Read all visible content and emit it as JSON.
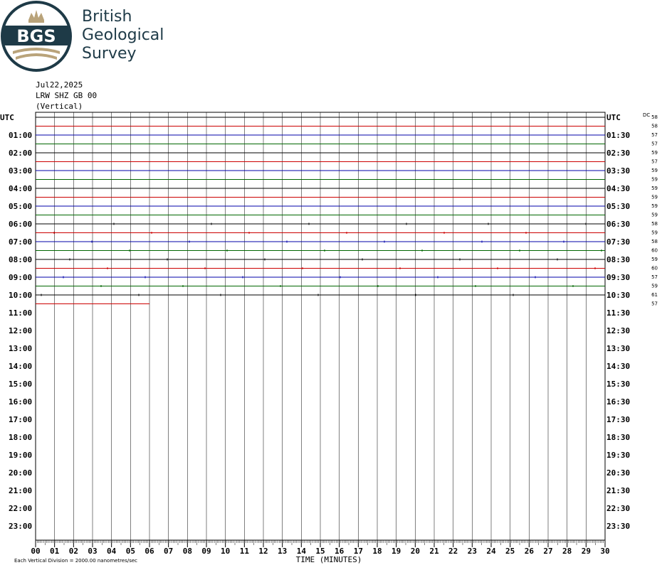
{
  "logo": {
    "badge_text": "BGS",
    "name_lines": [
      "British",
      "Geological",
      "Survey"
    ],
    "colors": {
      "navy": "#1e3a47",
      "gold": "#b9a37a"
    }
  },
  "header": {
    "date": "Jul22,2025",
    "station": "LRW SHZ GB 00",
    "component": "(Vertical)"
  },
  "labels": {
    "utc_left": "UTC",
    "utc_right": "UTC",
    "dc": "DC",
    "x_title": "TIME (MINUTES)",
    "footer": "Each Vertical Division = 2000.00 nanometres/sec"
  },
  "chart_data": {
    "type": "line",
    "title": "",
    "xlabel": "TIME (MINUTES)",
    "ylabel": "",
    "xlim": [
      0,
      30
    ],
    "x_ticks": [
      "00",
      "01",
      "02",
      "03",
      "04",
      "05",
      "06",
      "07",
      "08",
      "09",
      "10",
      "11",
      "12",
      "13",
      "14",
      "15",
      "16",
      "17",
      "18",
      "19",
      "20",
      "21",
      "22",
      "23",
      "24",
      "25",
      "26",
      "27",
      "28",
      "29",
      "30"
    ],
    "left_hour_labels": [
      "UTC",
      "01:00",
      "02:00",
      "03:00",
      "04:00",
      "05:00",
      "06:00",
      "07:00",
      "08:00",
      "09:00",
      "10:00",
      "11:00",
      "12:00",
      "13:00",
      "14:00",
      "15:00",
      "16:00",
      "17:00",
      "18:00",
      "19:00",
      "20:00",
      "21:00",
      "22:00",
      "23:00"
    ],
    "right_hour_labels": [
      "UTC",
      "01:30",
      "02:30",
      "03:30",
      "04:30",
      "05:30",
      "06:30",
      "07:30",
      "08:30",
      "09:30",
      "10:30",
      "11:30",
      "12:30",
      "13:30",
      "14:30",
      "15:30",
      "16:30",
      "17:30",
      "18:30",
      "19:30",
      "20:30",
      "21:30",
      "22:30",
      "23:30"
    ],
    "dc_offsets": [
      "58",
      "58",
      "57",
      "57",
      "59",
      "57",
      "59",
      "59",
      "59",
      "59",
      "59",
      "59",
      "58",
      "59",
      "58",
      "60",
      "59",
      "60",
      "57",
      "59",
      "61",
      "57"
    ],
    "trace_color_cycle": [
      "#000000",
      "#cc0000",
      "#0000aa",
      "#006600"
    ],
    "trace_count": 22,
    "last_trace_end_minute": 6,
    "vertical_division": "2000.00 nanometres/sec",
    "grid": true
  }
}
